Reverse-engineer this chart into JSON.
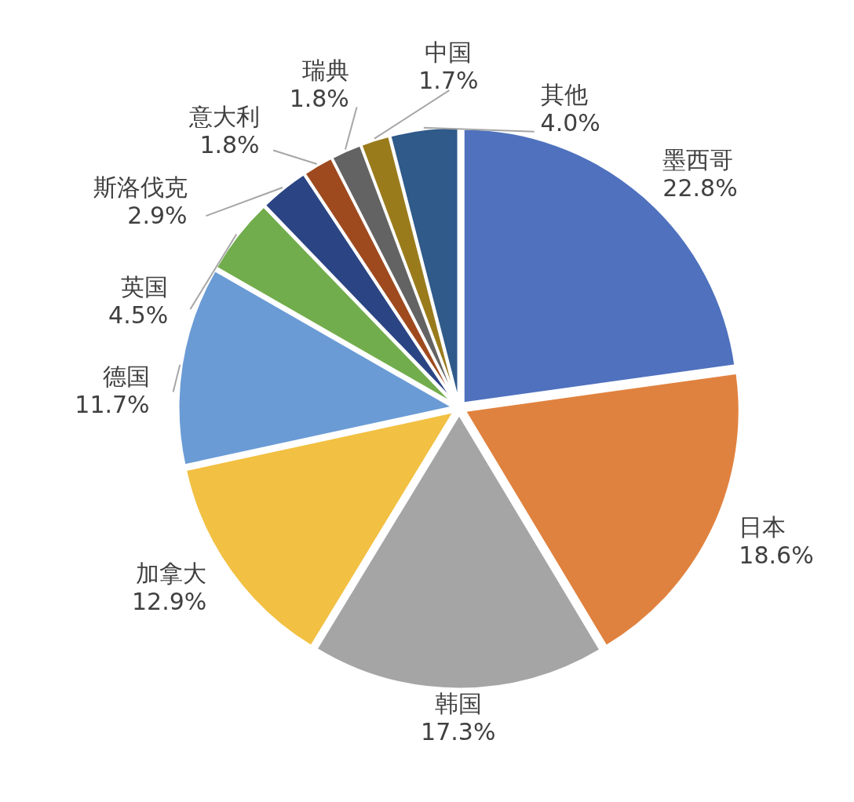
{
  "chart_data": {
    "type": "pie",
    "categories": [
      "墨西哥",
      "日本",
      "韩国",
      "加拿大",
      "德国",
      "英国",
      "斯洛伐克",
      "意大利",
      "瑞典",
      "中国",
      "其他"
    ],
    "values": [
      22.8,
      18.6,
      17.3,
      12.9,
      11.7,
      4.5,
      2.9,
      1.8,
      1.8,
      1.7,
      4.0
    ],
    "value_labels": [
      "22.8%",
      "18.6%",
      "17.3%",
      "12.9%",
      "11.7%",
      "4.5%",
      "2.9%",
      "1.8%",
      "1.8%",
      "1.7%",
      "4.0%"
    ],
    "colors": [
      "#4f71be",
      "#e0823f",
      "#a5a5a5",
      "#f2c042",
      "#6a9bd5",
      "#72ad4d",
      "#2b4483",
      "#9e4a1e",
      "#636363",
      "#9a7b1c",
      "#2f5a8a"
    ]
  }
}
